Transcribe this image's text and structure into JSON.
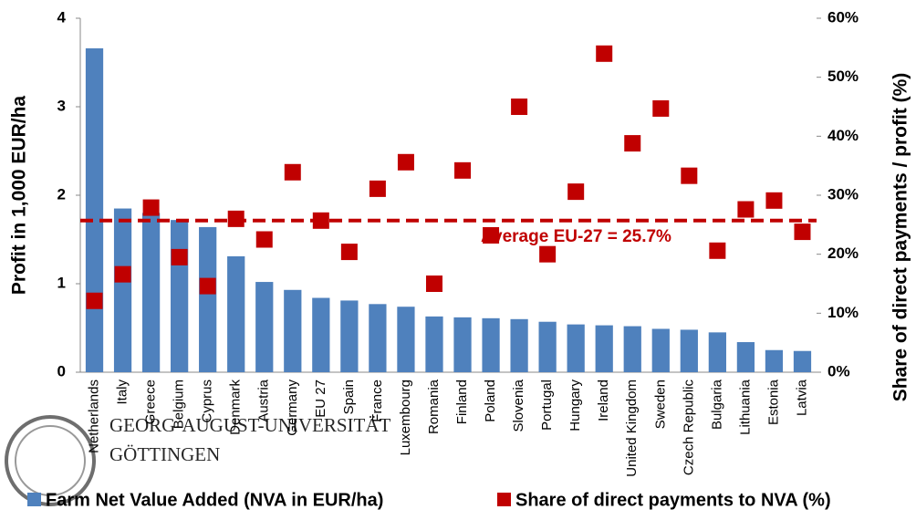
{
  "chart_data": {
    "type": "bar+scatter",
    "categories": [
      "Netherlands",
      "Italy",
      "Greece",
      "Belgium",
      "Cyprus",
      "Denmark",
      "Austria",
      "Germany",
      "EU 27",
      "Spain",
      "France",
      "Luxembourg",
      "Romania",
      "Finland",
      "Poland",
      "Slovenia",
      "Portugal",
      "Hungary",
      "Ireland",
      "United Kingdom",
      "Sweden",
      "Czech Republic",
      "Bulgaria",
      "Lithuania",
      "Estonia",
      "Latvia"
    ],
    "series": [
      {
        "name": "Farm Net Value Added (NVA in EUR/ha)",
        "color": "#4f81bd",
        "type": "bar",
        "values": [
          3.66,
          1.85,
          1.8,
          1.72,
          1.64,
          1.31,
          1.02,
          0.93,
          0.84,
          0.81,
          0.77,
          0.74,
          0.63,
          0.62,
          0.61,
          0.6,
          0.57,
          0.54,
          0.53,
          0.52,
          0.49,
          0.48,
          0.45,
          0.34,
          0.25,
          0.24
        ]
      },
      {
        "name": "Share of direct payments to NVA (%)",
        "color": "#c00000",
        "type": "scatter",
        "axis": "y2",
        "values": [
          12.1,
          16.6,
          27.9,
          19.5,
          14.6,
          26.0,
          22.5,
          33.9,
          25.7,
          20.4,
          31.1,
          35.6,
          15.0,
          34.2,
          23.2,
          45.0,
          20.0,
          30.6,
          54.0,
          38.8,
          44.7,
          33.3,
          20.6,
          27.6,
          29.1,
          23.8
        ]
      }
    ],
    "ylabel": "Profit in 1,000 EUR/ha",
    "y2label": "Share of direct payments / profit (%)",
    "ylim": [
      0,
      4
    ],
    "yticks": [
      0,
      1,
      2,
      3,
      4
    ],
    "y2lim": [
      0,
      60
    ],
    "y2ticks": [
      {
        "value": 0,
        "label": "0%"
      },
      {
        "value": 10,
        "label": "10%"
      },
      {
        "value": 20,
        "label": "20%"
      },
      {
        "value": 30,
        "label": "30%"
      },
      {
        "value": 40,
        "label": "40%"
      },
      {
        "value": 50,
        "label": "50%"
      },
      {
        "value": 60,
        "label": "60%"
      }
    ],
    "reference_line": {
      "label": "Average EU-27 = 25.7%",
      "value": 25.7,
      "axis": "y2",
      "color": "#c00000"
    },
    "legend": "bottom"
  },
  "logo": {
    "line1": "GEORG-AUGUST-UNIVERSITÄT",
    "line2": "GÖTTINGEN"
  }
}
